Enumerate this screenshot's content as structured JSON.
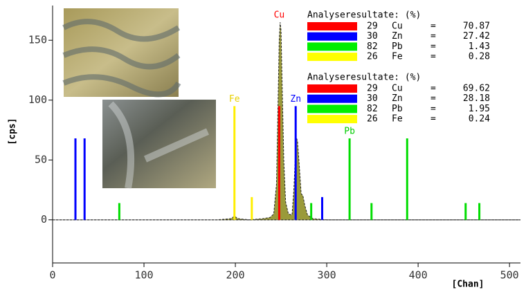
{
  "chart_data": {
    "type": "spectrum",
    "ylabel": "[cps]",
    "xlabel": "[Chan]",
    "xlim": [
      0,
      512
    ],
    "ylim": [
      -36,
      179
    ],
    "xticks": [
      0,
      100,
      200,
      300,
      400,
      500
    ],
    "yticks": [
      0,
      50,
      100,
      150
    ],
    "spectrum": {
      "color": "#9a9a3a",
      "x": [
        0,
        20,
        60,
        120,
        180,
        195,
        199,
        203,
        215,
        230,
        238,
        242,
        245,
        247,
        248,
        249,
        250,
        251,
        253,
        255,
        258,
        262,
        264,
        266,
        267,
        268,
        270,
        272,
        274,
        276,
        279,
        285,
        300,
        400,
        512
      ],
      "values": [
        0,
        0,
        0,
        0,
        0,
        1,
        3,
        1,
        0,
        1,
        2,
        5,
        30,
        110,
        150,
        165,
        158,
        120,
        50,
        15,
        5,
        4,
        25,
        60,
        68,
        66,
        45,
        22,
        20,
        12,
        4,
        1,
        0,
        0,
        0
      ]
    },
    "markers": [
      {
        "x": 25,
        "value": 68,
        "color": "#0000ff"
      },
      {
        "x": 35,
        "value": 68,
        "color": "#0000ff"
      },
      {
        "x": 73,
        "value": 14,
        "color": "#00dd00"
      },
      {
        "x": 199,
        "value": 95,
        "color": "#ffee00",
        "label": "Fe",
        "label_color": "#e8d000"
      },
      {
        "x": 218,
        "value": 19,
        "color": "#ffee00"
      },
      {
        "x": 248,
        "value": 95,
        "color": "#ff0000",
        "label": "Cu",
        "label_color": "#ff0000"
      },
      {
        "x": 266,
        "value": 95,
        "color": "#0000ff",
        "label": "Zn",
        "label_color": "#0000ff"
      },
      {
        "x": 283,
        "value": 14,
        "color": "#00dd00"
      },
      {
        "x": 295,
        "value": 19,
        "color": "#0000ff"
      },
      {
        "x": 325,
        "value": 68,
        "color": "#00dd00",
        "label": "Pb",
        "label_color": "#00cc00"
      },
      {
        "x": 349,
        "value": 14,
        "color": "#00dd00"
      },
      {
        "x": 388,
        "value": 68,
        "color": "#00dd00"
      },
      {
        "x": 452,
        "value": 14,
        "color": "#00dd00"
      },
      {
        "x": 467,
        "value": 14,
        "color": "#00dd00"
      }
    ],
    "results": [
      {
        "title": "Analyseresultate: (%)",
        "rows": [
          {
            "color": "#ff0000",
            "z": 29,
            "element": "Cu",
            "eq": "=",
            "value": 70.87
          },
          {
            "color": "#0000ff",
            "z": 30,
            "element": "Zn",
            "eq": "=",
            "value": 27.42
          },
          {
            "color": "#00ee00",
            "z": 82,
            "element": "Pb",
            "eq": "=",
            "value": 1.43
          },
          {
            "color": "#ffff00",
            "z": 26,
            "element": "Fe",
            "eq": "=",
            "value": 0.28
          }
        ]
      },
      {
        "title": "Analyseresultate: (%)",
        "rows": [
          {
            "color": "#ff0000",
            "z": 29,
            "element": "Cu",
            "eq": "=",
            "value": 69.62
          },
          {
            "color": "#0000ff",
            "z": 30,
            "element": "Zn",
            "eq": "=",
            "value": 28.18
          },
          {
            "color": "#00ee00",
            "z": 82,
            "element": "Pb",
            "eq": "=",
            "value": 1.95
          },
          {
            "color": "#ffff00",
            "z": 26,
            "element": "Fe",
            "eq": "=",
            "value": 0.24
          }
        ]
      }
    ]
  }
}
